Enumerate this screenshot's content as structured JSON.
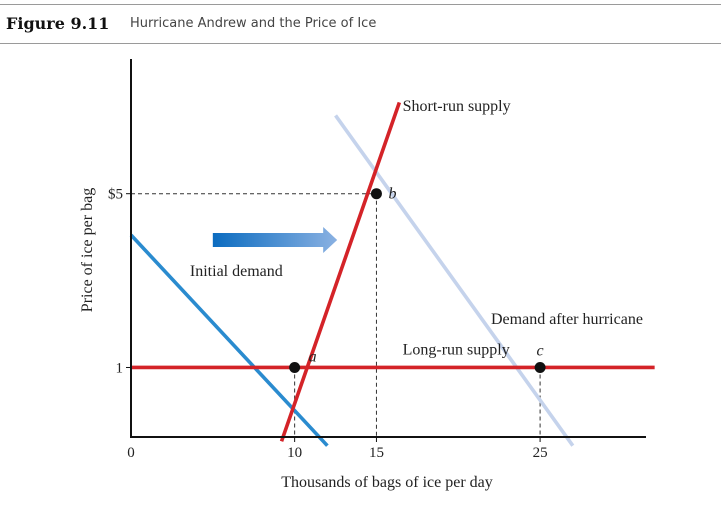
{
  "figure": {
    "number": "Figure 9.11",
    "title": "Hurricane Andrew and the Price of Ice"
  },
  "chart_data": {
    "type": "line",
    "xlabel": "Thousands of bags of ice per day",
    "ylabel": "Price of ice per bag",
    "xlim": [
      0,
      33
    ],
    "ylim": [
      -0.6,
      8.1
    ],
    "x_ticks": [
      {
        "value": 0,
        "label": "0"
      },
      {
        "value": 10,
        "label": "10"
      },
      {
        "value": 15,
        "label": "15"
      },
      {
        "value": 25,
        "label": "25"
      }
    ],
    "y_ticks": [
      {
        "value": 1,
        "label": "1"
      },
      {
        "value": 5,
        "label": "$5"
      }
    ],
    "grid": false,
    "series": [
      {
        "name": "Initial demand",
        "color": "#2a8bcf",
        "x": [
          0,
          12
        ],
        "y": [
          4.05,
          -0.8
        ]
      },
      {
        "name": "Demand after hurricane",
        "color": "#c5d3ec",
        "x": [
          12.5,
          27
        ],
        "y": [
          6.8,
          -0.8
        ]
      },
      {
        "name": "Short-run supply",
        "color": "#d42328",
        "x": [
          9.2,
          16.4
        ],
        "y": [
          -0.7,
          7.1
        ]
      },
      {
        "name": "Long-run supply",
        "color": "#d42328",
        "x": [
          0,
          32
        ],
        "y": [
          1,
          1
        ]
      }
    ],
    "points": [
      {
        "label": "a",
        "x": 10,
        "y": 1
      },
      {
        "label": "b",
        "x": 15,
        "y": 5
      },
      {
        "label": "c",
        "x": 25,
        "y": 1
      }
    ],
    "annotations": [
      {
        "text": "Initial demand",
        "x": 3.6,
        "y": 3.1
      },
      {
        "text": "Demand after hurricane",
        "x": 22,
        "y": 2.0
      },
      {
        "text": "Short-run supply",
        "x": 16.6,
        "y": 6.9
      },
      {
        "text": "Long-run supply",
        "x": 16.6,
        "y": 1.3
      }
    ],
    "shift_arrow": {
      "from_x": 5,
      "to_x": 12.6,
      "y": 4.05
    }
  }
}
